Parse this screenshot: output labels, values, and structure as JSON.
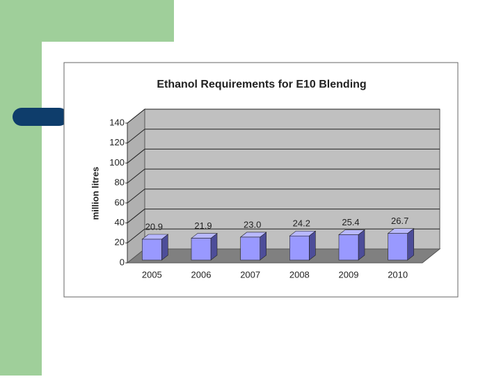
{
  "chart_data": {
    "type": "bar",
    "title": "Ethanol Requirements for E10 Blending",
    "y_label": "million litres",
    "categories": [
      "2005",
      "2006",
      "2007",
      "2008",
      "2009",
      "2010"
    ],
    "values": [
      20.9,
      21.9,
      23.0,
      24.2,
      25.4,
      26.7
    ],
    "value_labels": [
      "20.9",
      "21.9",
      "23.0",
      "24.2",
      "25.4",
      "26.7"
    ],
    "color": "#9999ff",
    "ylim": [
      0,
      140
    ],
    "yticks": [
      0,
      20,
      40,
      60,
      80,
      100,
      120,
      140
    ],
    "grid": true
  }
}
